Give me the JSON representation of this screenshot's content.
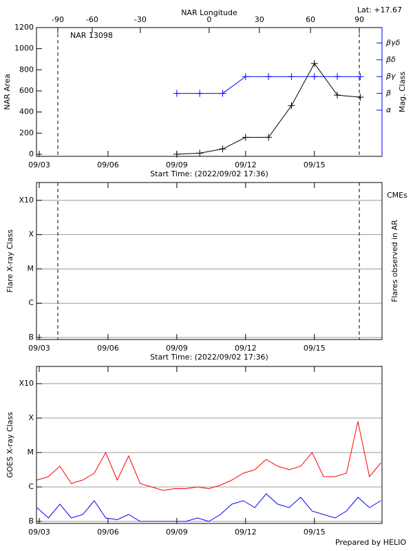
{
  "chart_data": [
    {
      "type": "line",
      "title": "NAR 13098",
      "lat": "Lat: +17.67",
      "xlabel": "Start Time: (2022/09/02 17:36)",
      "x2label": "NAR Longitude",
      "ylabel": "NAR Area",
      "y2label": "Mag. Class",
      "y2color": "#0000ff",
      "xlim": [
        2.88,
        17.95
      ],
      "xticks": [
        {
          "value": 3,
          "label": "09/03"
        },
        {
          "value": 6,
          "label": "09/06"
        },
        {
          "value": 9,
          "label": "09/09"
        },
        {
          "value": 12,
          "label": "09/12"
        },
        {
          "value": 15,
          "label": "09/15"
        }
      ],
      "x2ticks": [
        {
          "value": 3.81,
          "label": "-90"
        },
        {
          "value": 5.31,
          "label": "-60"
        },
        {
          "value": 7.41,
          "label": "-30"
        },
        {
          "value": 10.41,
          "label": "0"
        },
        {
          "value": 12.6,
          "label": "30"
        },
        {
          "value": 14.83,
          "label": "60"
        },
        {
          "value": 16.96,
          "label": "90"
        }
      ],
      "dashed_x": [
        3.81,
        16.96
      ],
      "ylim": [
        -20,
        1200
      ],
      "yticks": [
        0,
        200,
        400,
        600,
        800,
        1000,
        1200
      ],
      "y2lim": [
        0.25,
        7.92
      ],
      "y2ticks": [
        {
          "value": 3,
          "label": "α"
        },
        {
          "value": 4,
          "label": "β"
        },
        {
          "value": 5,
          "label": "βγ"
        },
        {
          "value": 6,
          "label": "βδ"
        },
        {
          "value": 7,
          "label": "βγδ"
        }
      ],
      "markers": true,
      "grid": false,
      "x": [
        9,
        10,
        11,
        12,
        13,
        14,
        15,
        16,
        17
      ],
      "series": [
        {
          "color": "#000000",
          "values": [
            0,
            10,
            50,
            160,
            160,
            460,
            860,
            560,
            540
          ]
        },
        {
          "color": "#0000ff",
          "axis": "y2",
          "values": [
            4,
            4,
            4,
            5,
            5,
            5,
            5,
            5,
            5
          ]
        }
      ]
    },
    {
      "type": "scatter",
      "xlabel": "Start Time: (2022/09/02 17:36)",
      "ylabel": "Flare X-ray Class",
      "y2label": "Flares observed in AR",
      "annotation": "CMEs",
      "annotation_color": "#ff0000",
      "xlim": [
        2.88,
        17.95
      ],
      "xticks": [
        {
          "value": 3,
          "label": "09/03"
        },
        {
          "value": 6,
          "label": "09/06"
        },
        {
          "value": 9,
          "label": "09/09"
        },
        {
          "value": 12,
          "label": "09/12"
        },
        {
          "value": 15,
          "label": "09/15"
        }
      ],
      "dashed_x": [
        3.81,
        16.96
      ],
      "ylim": [
        -7.06,
        -2.48
      ],
      "yticks": [
        {
          "value": -7,
          "label": "B"
        },
        {
          "value": -6,
          "label": "C"
        },
        {
          "value": -5,
          "label": "M"
        },
        {
          "value": -4,
          "label": "X"
        },
        {
          "value": -3,
          "label": "X10"
        }
      ],
      "grid": true,
      "series": []
    },
    {
      "type": "line",
      "ylabel": "GOES X-ray Class",
      "note": "Prepared by HELIO",
      "xlim": [
        2.88,
        17.95
      ],
      "xticks": [
        {
          "value": 3,
          "label": "09/03"
        },
        {
          "value": 6,
          "label": "09/06"
        },
        {
          "value": 9,
          "label": "09/09"
        },
        {
          "value": 12,
          "label": "09/12"
        },
        {
          "value": 15,
          "label": "09/15"
        }
      ],
      "ylim": [
        -7.06,
        -2.5
      ],
      "yticks": [
        {
          "value": -7,
          "label": "B"
        },
        {
          "value": -6,
          "label": "C"
        },
        {
          "value": -5,
          "label": "M"
        },
        {
          "value": -4,
          "label": "X"
        },
        {
          "value": -3,
          "label": "X10"
        }
      ],
      "grid": true,
      "markers": false,
      "x": [
        2.9,
        3.4,
        3.9,
        4.4,
        4.9,
        5.4,
        5.9,
        6.4,
        6.9,
        7.4,
        7.9,
        8.4,
        8.9,
        9.4,
        9.9,
        10.4,
        10.9,
        11.4,
        11.9,
        12.4,
        12.9,
        13.4,
        13.9,
        14.4,
        14.9,
        15.4,
        15.9,
        16.4,
        16.9,
        17.4,
        17.9
      ],
      "series": [
        {
          "color": "#ff0000",
          "values": [
            -5.8,
            -5.7,
            -5.4,
            -5.9,
            -5.8,
            -5.6,
            -5.0,
            -5.8,
            -5.1,
            -5.9,
            -6.0,
            -6.1,
            -6.05,
            -6.05,
            -6.0,
            -6.05,
            -5.95,
            -5.8,
            -5.6,
            -5.5,
            -5.2,
            -5.4,
            -5.5,
            -5.4,
            -5.0,
            -5.7,
            -5.7,
            -5.6,
            -4.1,
            -5.7,
            -5.3
          ]
        },
        {
          "color": "#0000ff",
          "values": [
            -6.6,
            -6.9,
            -6.5,
            -6.9,
            -6.8,
            -6.4,
            -6.9,
            -6.95,
            -6.8,
            -7,
            -7,
            -7,
            -7,
            -7,
            -6.9,
            -7,
            -6.8,
            -6.5,
            -6.4,
            -6.6,
            -6.2,
            -6.5,
            -6.6,
            -6.3,
            -6.7,
            -6.8,
            -6.9,
            -6.7,
            -6.3,
            -6.6,
            -6.4
          ]
        }
      ]
    }
  ]
}
